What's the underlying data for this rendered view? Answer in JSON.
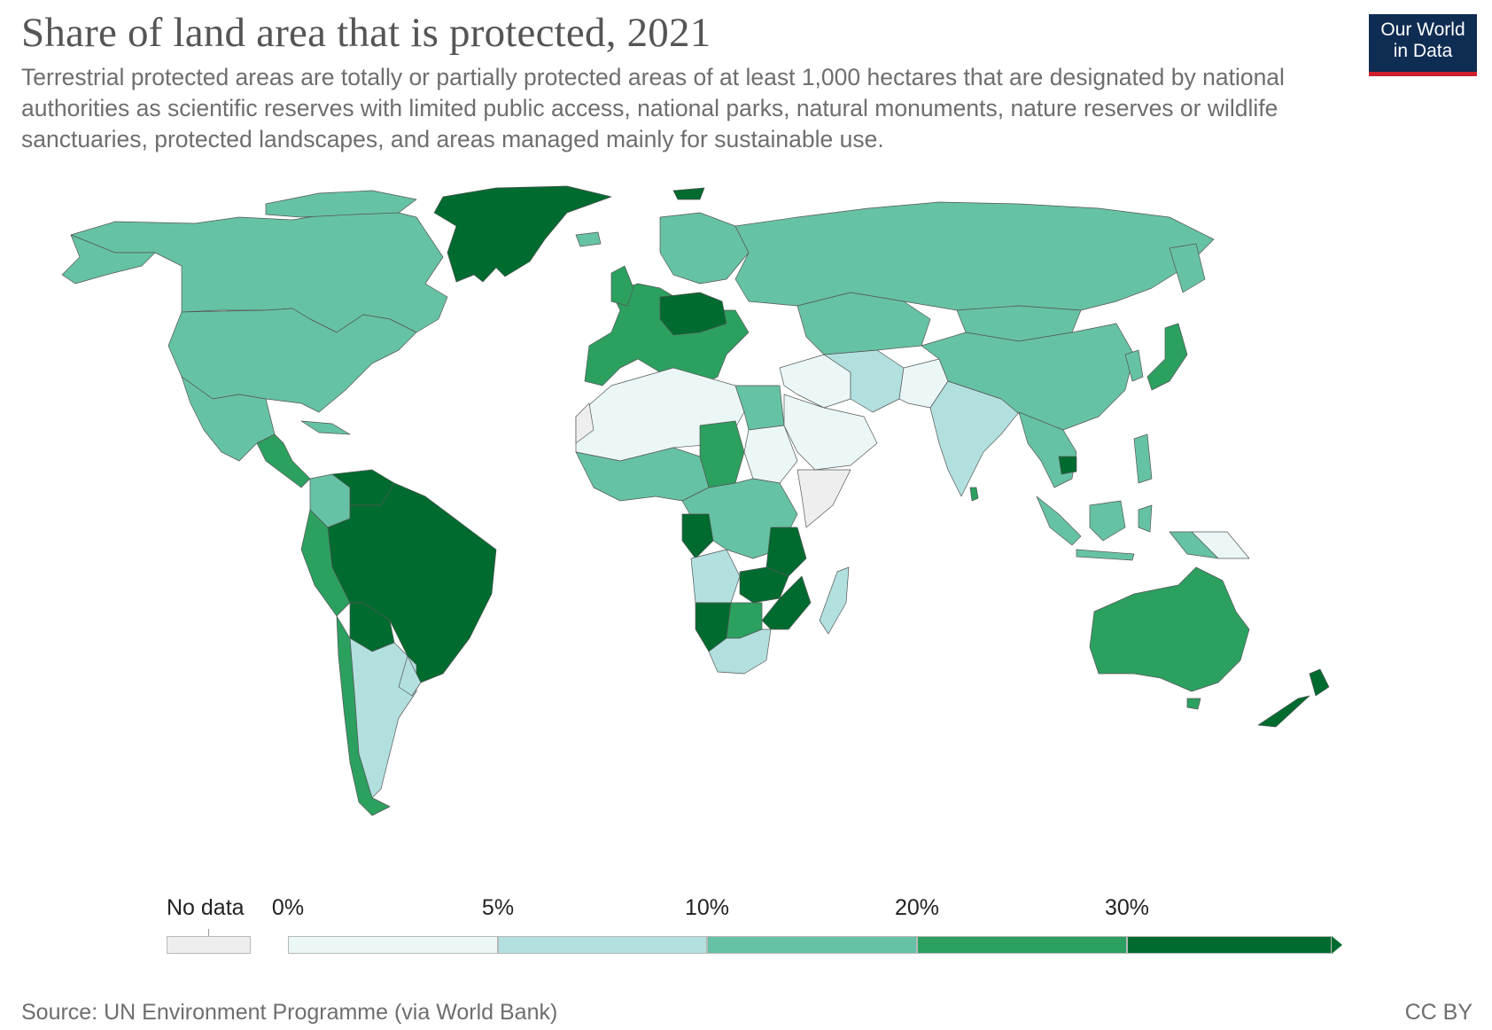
{
  "header": {
    "title": "Share of land area that is protected, 2021",
    "subtitle": "Terrestrial protected areas are totally or partially protected areas of at least 1,000 hectares that are designated by national authorities as scientific reserves with limited public access, national parks, natural monuments, nature reserves or wildlife sanctuaries, protected landscapes, and areas managed mainly for sustainable use."
  },
  "logo": {
    "line1": "Our World",
    "line2": "in Data"
  },
  "legend": {
    "no_data_label": "No data",
    "no_data_color": "#eeeeee",
    "ticks": [
      "0%",
      "5%",
      "10%",
      "20%",
      "30%"
    ],
    "bins": [
      {
        "range": "0-5%",
        "color": "#ebf7f7"
      },
      {
        "range": "5-10%",
        "color": "#b1e0df"
      },
      {
        "range": "10-20%",
        "color": "#66c2a4"
      },
      {
        "range": "20-30%",
        "color": "#2ca05f"
      },
      {
        "range": "30%+",
        "color": "#006b2f"
      }
    ]
  },
  "map_data": {
    "Greenland": "30%+",
    "Canada": "10-20%",
    "United States": "10-20%",
    "Mexico": "10-20%",
    "Central America": "20-30%",
    "Colombia": "10-20%",
    "Venezuela": "30%+",
    "Brazil": "30%+",
    "Peru": "20-30%",
    "Bolivia": "30%+",
    "Chile": "20-30%",
    "Argentina": "5-10%",
    "Europe": "20-30%",
    "Germany / Poland": "30%+",
    "Scandinavia": "10-20%",
    "Russia": "10-20%",
    "North Africa": "0-5%",
    "Egypt": "10-20%",
    "West Africa": "10-20%",
    "Sudan": "0-5%",
    "Chad": "20-30%",
    "Central Africa": "10-20%",
    "Congo": "30%+",
    "Tanzania": "30%+",
    "Zambia": "30%+",
    "Angola": "5-10%",
    "Namibia": "30%+",
    "Botswana": "20-30%",
    "South Africa": "5-10%",
    "Madagascar": "5-10%",
    "Middle East": "0-5%",
    "Iran": "5-10%",
    "Saudi Arabia": "0-5%",
    "India": "5-10%",
    "China": "10-20%",
    "Mongolia": "10-20%",
    "Southeast Asia": "10-20%",
    "Japan": "20-30%",
    "Indonesia": "10-20%",
    "Papua New Guinea": "0-5%",
    "Australia": "20-30%",
    "New Zealand": "30%+",
    "Somalia / Horn": "No data"
  },
  "footer": {
    "source": "Source: UN Environment Programme (via World Bank)",
    "license": "CC BY"
  }
}
